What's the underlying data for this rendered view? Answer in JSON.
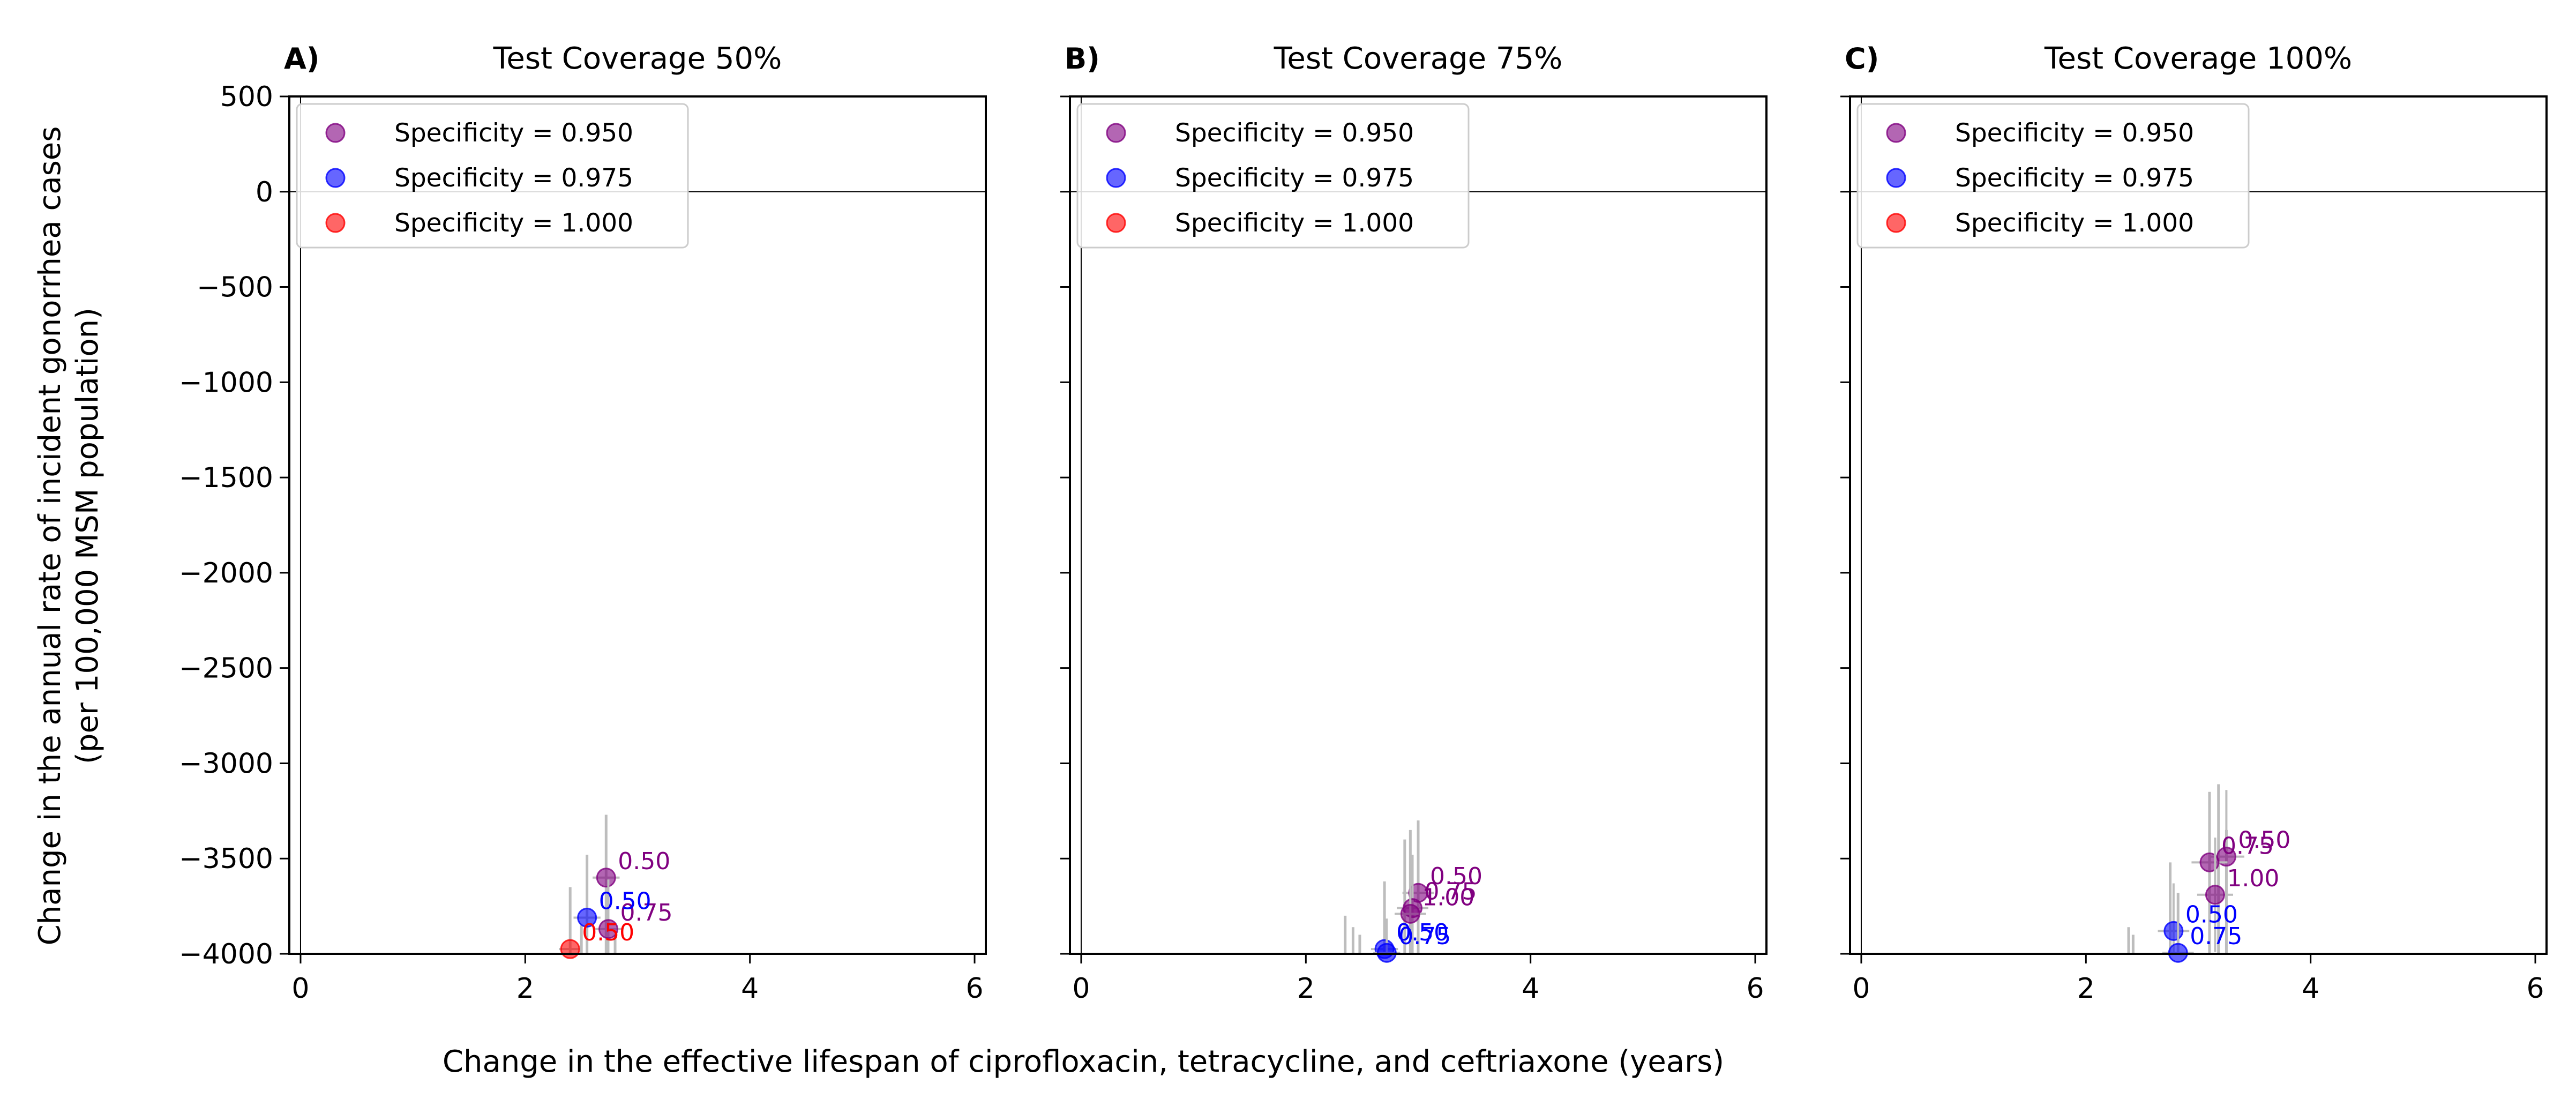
{
  "figure": {
    "ylabel_line1": "Change in the annual rate of incident gonorrhea cases",
    "ylabel_line2": "(per 100,000 MSM population)",
    "xlabel": "Change in the effective lifespan of ciprofloxacin, tetracycline, and ceftriaxone (years)"
  },
  "colors": {
    "spec_0_950": "#800080",
    "spec_0_975": "#0000ff",
    "spec_1_000": "#ff0000",
    "errorbar": "#bdbdbd"
  },
  "chart_data": [
    {
      "type": "scatter",
      "panel_label": "A)",
      "title": "Test Coverage 50%",
      "xlim": [
        -0.1,
        6.1
      ],
      "ylim": [
        -4000,
        500
      ],
      "xticks": [
        "0",
        "2",
        "4",
        "6"
      ],
      "yticks": [
        "500",
        "0",
        "−500",
        "−1000",
        "−1500",
        "−2000",
        "−2500",
        "−3000",
        "−3500",
        "−4000"
      ],
      "legend": {
        "placement": "upper-left",
        "entries": [
          "Specificity = 0.950",
          "Specificity = 0.975",
          "Specificity = 1.000"
        ]
      },
      "series": [
        {
          "name": "Specificity = 0.950",
          "color": "#800080",
          "points": [
            {
              "x": 2.72,
              "y": -3600,
              "label": "0.50",
              "xerr": 0.12,
              "yerr": 320
            },
            {
              "x": 2.74,
              "y": -3870,
              "label": "0.75",
              "xerr": 0.12,
              "yerr": 260
            }
          ]
        },
        {
          "name": "Specificity = 0.975",
          "color": "#0000ff",
          "points": [
            {
              "x": 2.55,
              "y": -3810,
              "label": "0.50",
              "xerr": 0.12,
              "yerr": 300
            }
          ]
        },
        {
          "name": "Specificity = 1.000",
          "color": "#ff0000",
          "points": [
            {
              "x": 2.4,
              "y": -3975,
              "label": "0.50",
              "xerr": 0.1,
              "yerr": 200
            }
          ]
        }
      ],
      "grey_bars": [
        {
          "x": 2.4,
          "y1": -3650,
          "y2": -4000
        },
        {
          "x": 2.5,
          "y1": -3850,
          "y2": -4000
        },
        {
          "x": 2.55,
          "y1": -3480,
          "y2": -4000
        },
        {
          "x": 2.72,
          "y1": -3270,
          "y2": -4000
        },
        {
          "x": 2.8,
          "y1": -3900,
          "y2": -4000
        }
      ]
    },
    {
      "type": "scatter",
      "panel_label": "B)",
      "title": "Test Coverage 75%",
      "xlim": [
        -0.1,
        6.1
      ],
      "ylim": [
        -4000,
        500
      ],
      "xticks": [
        "0",
        "2",
        "4",
        "6"
      ],
      "legend": {
        "placement": "upper-left",
        "entries": [
          "Specificity = 0.950",
          "Specificity = 0.975",
          "Specificity = 1.000"
        ]
      },
      "series": [
        {
          "name": "Specificity = 0.950",
          "color": "#800080",
          "points": [
            {
              "x": 3.0,
              "y": -3680,
              "label": "0.50",
              "xerr": 0.14,
              "yerr": 300
            },
            {
              "x": 2.95,
              "y": -3760,
              "label": "0.75",
              "xerr": 0.14,
              "yerr": 280
            },
            {
              "x": 2.93,
              "y": -3790,
              "label": "1.00",
              "xerr": 0.14,
              "yerr": 260
            }
          ]
        },
        {
          "name": "Specificity = 0.975",
          "color": "#0000ff",
          "points": [
            {
              "x": 2.7,
              "y": -3975,
              "label": "0.50",
              "xerr": 0.12,
              "yerr": 200
            },
            {
              "x": 2.72,
              "y": -3995,
              "label": "0.75",
              "xerr": 0.12,
              "yerr": 180
            }
          ]
        },
        {
          "name": "Specificity = 1.000",
          "color": "#ff0000",
          "points": []
        }
      ],
      "grey_bars": [
        {
          "x": 2.35,
          "y1": -3800,
          "y2": -4000
        },
        {
          "x": 2.42,
          "y1": -3860,
          "y2": -4000
        },
        {
          "x": 2.48,
          "y1": -3900,
          "y2": -4000
        },
        {
          "x": 2.7,
          "y1": -3620,
          "y2": -4000
        },
        {
          "x": 2.88,
          "y1": -3400,
          "y2": -4000
        },
        {
          "x": 2.93,
          "y1": -3350,
          "y2": -4000
        },
        {
          "x": 3.0,
          "y1": -3300,
          "y2": -4000
        }
      ]
    },
    {
      "type": "scatter",
      "panel_label": "C)",
      "title": "Test Coverage 100%",
      "xlim": [
        -0.1,
        6.1
      ],
      "ylim": [
        -4000,
        500
      ],
      "xticks": [
        "0",
        "2",
        "4",
        "6"
      ],
      "legend": {
        "placement": "upper-left",
        "entries": [
          "Specificity = 0.950",
          "Specificity = 0.975",
          "Specificity = 1.000"
        ]
      },
      "series": [
        {
          "name": "Specificity = 0.950",
          "color": "#800080",
          "points": [
            {
              "x": 3.25,
              "y": -3490,
              "label": "0.50",
              "xerr": 0.16,
              "yerr": 350
            },
            {
              "x": 3.1,
              "y": -3520,
              "label": "0.75",
              "xerr": 0.16,
              "yerr": 330
            },
            {
              "x": 3.15,
              "y": -3690,
              "label": "1.00",
              "xerr": 0.16,
              "yerr": 300
            }
          ]
        },
        {
          "name": "Specificity = 0.975",
          "color": "#0000ff",
          "points": [
            {
              "x": 2.78,
              "y": -3880,
              "label": "0.50",
              "xerr": 0.14,
              "yerr": 250
            },
            {
              "x": 2.82,
              "y": -3995,
              "label": "0.75",
              "xerr": 0.14,
              "yerr": 200
            }
          ]
        },
        {
          "name": "Specificity = 1.000",
          "color": "#ff0000",
          "points": []
        }
      ],
      "grey_bars": [
        {
          "x": 2.38,
          "y1": -3860,
          "y2": -4000
        },
        {
          "x": 2.42,
          "y1": -3900,
          "y2": -4000
        },
        {
          "x": 2.75,
          "y1": -3520,
          "y2": -4000
        },
        {
          "x": 2.82,
          "y1": -3680,
          "y2": -4000
        },
        {
          "x": 3.1,
          "y1": -3150,
          "y2": -4000
        },
        {
          "x": 3.18,
          "y1": -3110,
          "y2": -4000
        },
        {
          "x": 3.25,
          "y1": -3350,
          "y2": -4000
        }
      ]
    }
  ]
}
